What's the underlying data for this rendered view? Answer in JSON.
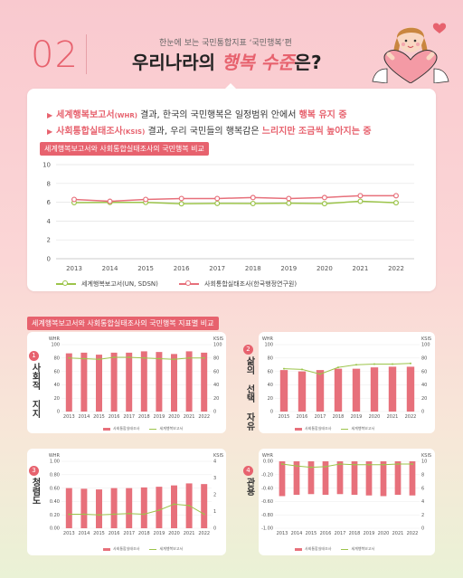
{
  "header": {
    "number": "02",
    "subtitle": "한눈에 보는 국민통합지표 ‘국민행복’편",
    "title_pre": "우리나라의 ",
    "title_hl": "행복 수준",
    "title_post": "은?"
  },
  "summary": {
    "line1_a": "세계행복보고서",
    "line1_a_sm": "(WHR)",
    "line1_b": " 결과, 한국의 국민행복은 일정범위 안에서 ",
    "line1_c": "행복 유지 중",
    "line2_a": "사회통합실태조사",
    "line2_a_sm": "(KSIS)",
    "line2_b": " 결과, 우리 국민들의 행복감은 ",
    "line2_c": "느리지만 조금씩 높아지는 중"
  },
  "colors": {
    "accent": "#e7626e",
    "green": "#9cc44a",
    "pink_line": "#e7707b",
    "bar": "#e7707b"
  },
  "chart_data": [
    {
      "type": "line",
      "title": "세계행복보고서와 사회통합실태조사의 국민행복 비교",
      "x": [
        "2013",
        "2014",
        "2015",
        "2016",
        "2017",
        "2018",
        "2019",
        "2020",
        "2021",
        "2022"
      ],
      "ylim": [
        0,
        10
      ],
      "yticks": [
        0,
        2,
        4,
        6,
        8,
        10
      ],
      "grid": true,
      "legend_position": "bottom",
      "series": [
        {
          "name": "세계행복보고서(UN, SDSN)",
          "values": [
            5.96,
            5.98,
            5.98,
            5.84,
            5.88,
            5.87,
            5.9,
            5.85,
            6.11,
            5.95
          ]
        },
        {
          "name": "사회통합실태조사(한국행정연구원)",
          "values": [
            6.3,
            6.1,
            6.3,
            6.4,
            6.4,
            6.5,
            6.4,
            6.5,
            6.7,
            6.7
          ]
        }
      ]
    },
    {
      "type": "bar",
      "panel": "1",
      "title": "사회적 지지",
      "section_title": "세계행복보고서와 사회통합실태조사의 국민행복 지표별 비교",
      "left_axis": "WHR",
      "right_axis": "KSIS",
      "x": [
        "2013",
        "2014",
        "2015",
        "2016",
        "2017",
        "2018",
        "2019",
        "2020",
        "2021",
        "2022"
      ],
      "left_ticks": [
        "0",
        "20",
        "40",
        "60",
        "80",
        "100"
      ],
      "right_ticks": [
        "0",
        "20",
        "40",
        "60",
        "80",
        "100"
      ],
      "ylim": [
        0,
        100
      ],
      "series": [
        {
          "name": "사회통합실태조사",
          "type": "bar",
          "values": [
            87,
            88,
            85,
            88,
            88,
            90,
            89,
            86,
            90,
            88
          ]
        },
        {
          "name": "세계행복보고서",
          "type": "line",
          "values": [
            80,
            79,
            78,
            81,
            81,
            80,
            79,
            78,
            80,
            80
          ]
        }
      ]
    },
    {
      "type": "bar",
      "panel": "2",
      "title": "삶의 선택 자유",
      "left_axis": "WHR",
      "right_axis": "KSIS",
      "x": [
        "2015",
        "2016",
        "2017",
        "2018",
        "2019",
        "2020",
        "2021",
        "2022"
      ],
      "left_ticks": [
        "0",
        "20",
        "40",
        "60",
        "80",
        "100"
      ],
      "right_ticks": [
        "0",
        "20",
        "40",
        "60",
        "80",
        "100"
      ],
      "ylim": [
        0,
        100
      ],
      "series": [
        {
          "name": "사회통합실태조사",
          "type": "bar",
          "values": [
            62,
            60,
            62,
            64,
            64,
            66,
            67,
            67
          ]
        },
        {
          "name": "세계행복보고서",
          "type": "line",
          "values": [
            64,
            63,
            56,
            66,
            70,
            71,
            71,
            72
          ]
        }
      ]
    },
    {
      "type": "bar",
      "panel": "3",
      "title": "청렴도",
      "left_axis": "WHR",
      "right_axis": "KSIS",
      "x": [
        "2013",
        "2014",
        "2015",
        "2016",
        "2017",
        "2018",
        "2019",
        "2020",
        "2021",
        "2022"
      ],
      "left_ticks": [
        "0.00",
        "0.20",
        "0.40",
        "0.60",
        "0.80",
        "1.00"
      ],
      "right_ticks": [
        "0",
        "1",
        "2",
        "3",
        "4"
      ],
      "ylim": [
        0,
        1
      ],
      "series": [
        {
          "name": "사회통합실태조사",
          "type": "bar",
          "values": [
            0.6,
            0.59,
            0.58,
            0.6,
            0.6,
            0.61,
            0.62,
            0.64,
            0.67,
            0.66
          ]
        },
        {
          "name": "세계행복보고서",
          "type": "line",
          "values": [
            0.21,
            0.21,
            0.2,
            0.21,
            0.22,
            0.21,
            0.27,
            0.36,
            0.34,
            0.21
          ]
        }
      ]
    },
    {
      "type": "bar",
      "panel": "4",
      "title": "관용",
      "left_axis": "WHR",
      "right_axis": "KSIS",
      "x": [
        "2013",
        "2014",
        "2015",
        "2016",
        "2017",
        "2018",
        "2019",
        "2020",
        "2021",
        "2022"
      ],
      "left_ticks": [
        "-1.00",
        "-0.80",
        "-0.60",
        "-0.40",
        "-0.20",
        "0.00"
      ],
      "right_ticks": [
        "0",
        "2",
        "4",
        "6",
        "8",
        "10"
      ],
      "ylim": [
        -1,
        0
      ],
      "series": [
        {
          "name": "사회통합실태조사",
          "type": "bar",
          "values": [
            -0.52,
            -0.5,
            -0.49,
            -0.5,
            -0.49,
            -0.5,
            -0.51,
            -0.52,
            -0.5,
            -0.51
          ]
        },
        {
          "name": "세계행복보고서",
          "type": "line",
          "values": [
            -0.04,
            -0.07,
            -0.09,
            -0.08,
            -0.04,
            -0.05,
            -0.05,
            -0.05,
            -0.04,
            -0.04
          ]
        }
      ]
    }
  ],
  "mini_legend": {
    "bar": "사회통합실태조사",
    "line": "세계행복보고서"
  }
}
